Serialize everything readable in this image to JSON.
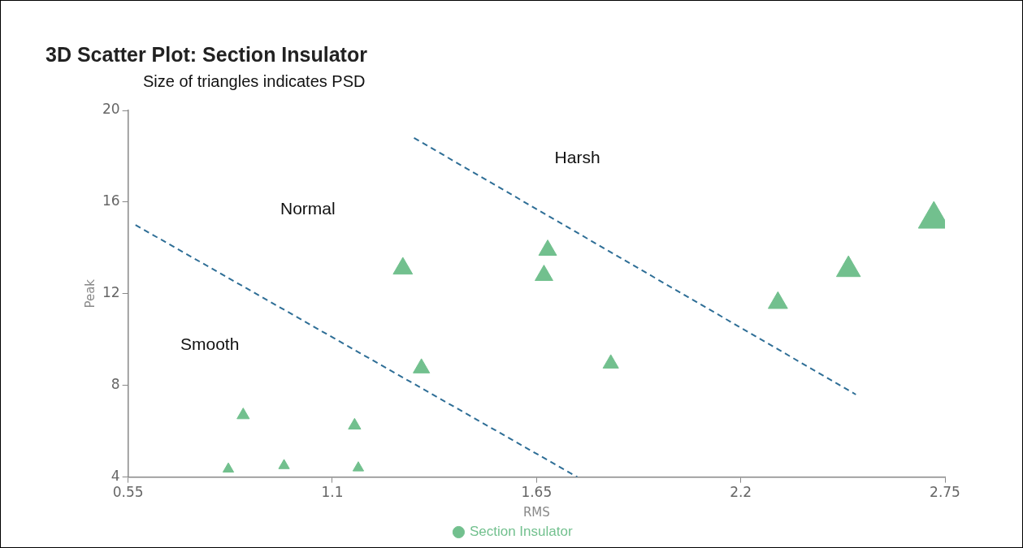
{
  "chart_data": {
    "type": "bubble",
    "title": "3D Scatter Plot: Section Insulator",
    "subtitle": "Size of triangles indicates PSD",
    "xlabel": "RMS",
    "ylabel": "Peak",
    "xlim": [
      0.55,
      2.75
    ],
    "xticks": [
      0.55,
      1.1,
      1.65,
      2.2,
      2.75
    ],
    "ylim": [
      4,
      20
    ],
    "yticks": [
      4,
      8,
      12,
      16,
      20
    ],
    "grid": false,
    "legend": "bottom",
    "marker": "triangle",
    "series": [
      {
        "name": "Section Insulator",
        "color": "#72c08e",
        "x": [
          0.82,
          0.86,
          0.97,
          1.16,
          1.17,
          1.29,
          1.34,
          1.67,
          1.68,
          1.85,
          2.3,
          2.49,
          2.72
        ],
        "values": [
          4.35,
          6.7,
          4.5,
          6.25,
          4.4,
          13.1,
          8.75,
          12.8,
          13.9,
          8.95,
          11.6,
          13.05,
          15.25
        ],
        "sizes": [
          0.12,
          0.16,
          0.12,
          0.16,
          0.12,
          0.39,
          0.28,
          0.33,
          0.33,
          0.25,
          0.39,
          0.6,
          1
        ]
      },
      {
        "type": "line",
        "color": "#2e6e96",
        "line_style": "dashed",
        "marker": "none",
        "x": [
          0.57,
          1.76
        ],
        "values": [
          15.0,
          4.0
        ]
      },
      {
        "type": "line",
        "color": "#2e6e96",
        "line_style": "dashed",
        "marker": "none",
        "x": [
          1.32,
          2.51
        ],
        "values": [
          18.8,
          7.6
        ]
      }
    ],
    "annotations": [
      "Normal",
      "Smooth",
      "Harsh"
    ]
  }
}
